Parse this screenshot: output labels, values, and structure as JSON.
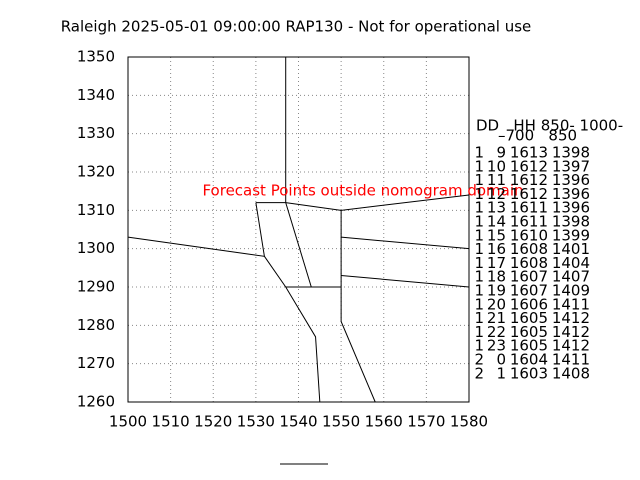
{
  "chart_data": {
    "type": "nomogram",
    "title": "Raleigh 2025-05-01 09:00:00 RAP130 - Not for operational use",
    "annotation": "Forecast Points outside nomogram domain",
    "annotation_color": "#ff0000",
    "xlim": [
      1500,
      1580
    ],
    "ylim": [
      1260,
      1350
    ],
    "xticks": [
      1500,
      1510,
      1520,
      1530,
      1540,
      1550,
      1560,
      1570,
      1580
    ],
    "yticks": [
      1260,
      1270,
      1280,
      1290,
      1300,
      1310,
      1320,
      1330,
      1340,
      1350
    ],
    "grid": true,
    "color": "#000000",
    "lines": [
      {
        "x": [
          1537,
          1537
        ],
        "y": [
          1350,
          1312
        ]
      },
      {
        "x": [
          1530,
          1537
        ],
        "y": [
          1312,
          1312
        ]
      },
      {
        "x": [
          1537,
          1550,
          1580
        ],
        "y": [
          1312,
          1310,
          1314
        ]
      },
      {
        "x": [
          1530,
          1532,
          1500
        ],
        "y": [
          1312,
          1298,
          1303
        ]
      },
      {
        "x": [
          1532,
          1537,
          1544,
          1545
        ],
        "y": [
          1298,
          1290,
          1277,
          1260
        ]
      },
      {
        "x": [
          1537,
          1543
        ],
        "y": [
          1312,
          1290
        ]
      },
      {
        "x": [
          1537,
          1550
        ],
        "y": [
          1290,
          1290
        ]
      },
      {
        "x": [
          1550,
          1550,
          1558
        ],
        "y": [
          1310,
          1281,
          1260
        ]
      },
      {
        "x": [
          1550,
          1580
        ],
        "y": [
          1303,
          1300
        ]
      },
      {
        "x": [
          1550,
          1580
        ],
        "y": [
          1293,
          1290
        ]
      }
    ],
    "table": {
      "header": [
        "DD   HH 850- 1000-",
        "–700   850"
      ],
      "rows": [
        [
          1,
          9,
          1613,
          1398
        ],
        [
          1,
          10,
          1612,
          1397
        ],
        [
          1,
          11,
          1612,
          1396
        ],
        [
          1,
          12,
          1612,
          1396
        ],
        [
          1,
          13,
          1611,
          1396
        ],
        [
          1,
          14,
          1611,
          1398
        ],
        [
          1,
          15,
          1610,
          1399
        ],
        [
          1,
          16,
          1608,
          1401
        ],
        [
          1,
          17,
          1608,
          1404
        ],
        [
          1,
          18,
          1607,
          1407
        ],
        [
          1,
          19,
          1607,
          1409
        ],
        [
          1,
          20,
          1606,
          1411
        ],
        [
          1,
          21,
          1605,
          1412
        ],
        [
          1,
          22,
          1605,
          1412
        ],
        [
          1,
          23,
          1605,
          1412
        ],
        [
          2,
          0,
          1604,
          1411
        ],
        [
          2,
          1,
          1603,
          1408
        ]
      ]
    }
  }
}
